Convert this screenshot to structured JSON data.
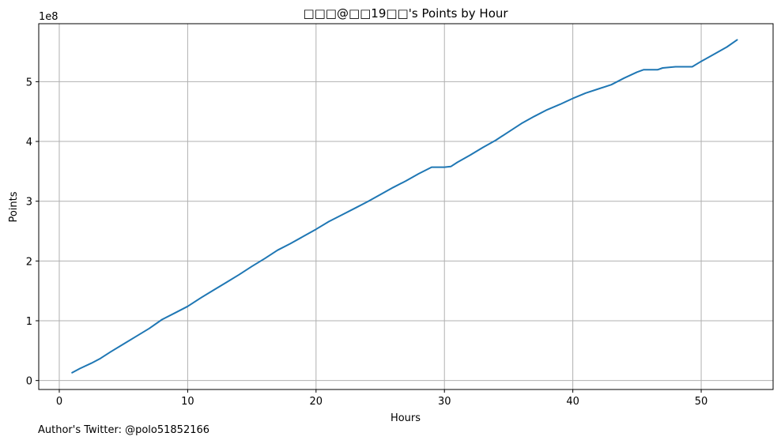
{
  "chart_data": {
    "type": "line",
    "title": "□□□@□□19□□'s Points by Hour",
    "xlabel": "Hours",
    "ylabel": "Points",
    "offset_label": "1e8",
    "xlim": [
      -1.6,
      55.6
    ],
    "ylim": [
      -0.15,
      5.97
    ],
    "x_ticks": [
      0,
      10,
      20,
      30,
      40,
      50
    ],
    "x_tick_labels": [
      "0",
      "10",
      "20",
      "30",
      "40",
      "50"
    ],
    "y_ticks": [
      0,
      1,
      2,
      3,
      4,
      5
    ],
    "y_tick_labels": [
      "0",
      "1",
      "2",
      "3",
      "4",
      "5"
    ],
    "grid": true,
    "line_color": "#1f77b4",
    "series": [
      {
        "x": [
          1,
          1.6,
          2.5,
          3.2,
          4,
          5,
          6,
          7,
          8,
          9,
          10,
          11,
          12,
          13,
          14,
          15,
          16,
          17,
          18,
          19,
          20,
          21,
          22,
          23,
          24,
          25,
          26,
          27,
          28,
          29,
          30,
          30.5,
          31,
          32,
          33,
          34,
          35,
          36,
          37,
          38,
          39,
          40,
          41,
          42,
          43,
          44,
          45,
          45.5,
          46,
          46.6,
          47,
          47.5,
          48,
          48.5,
          49,
          49.3,
          50,
          51,
          52,
          52.8
        ],
        "y": [
          0.13,
          0.2,
          0.29,
          0.37,
          0.48,
          0.61,
          0.74,
          0.87,
          1.02,
          1.13,
          1.24,
          1.38,
          1.51,
          1.64,
          1.77,
          1.91,
          2.04,
          2.18,
          2.29,
          2.41,
          2.53,
          2.66,
          2.77,
          2.88,
          2.99,
          3.11,
          3.23,
          3.34,
          3.46,
          3.57,
          3.57,
          3.58,
          3.65,
          3.77,
          3.9,
          4.02,
          4.16,
          4.3,
          4.42,
          4.53,
          4.62,
          4.72,
          4.81,
          4.88,
          4.95,
          5.06,
          5.16,
          5.2,
          5.2,
          5.2,
          5.23,
          5.24,
          5.25,
          5.25,
          5.25,
          5.25,
          5.34,
          5.46,
          5.58,
          5.7
        ]
      }
    ]
  },
  "footer": {
    "text": "Author's Twitter: @polo51852166"
  }
}
